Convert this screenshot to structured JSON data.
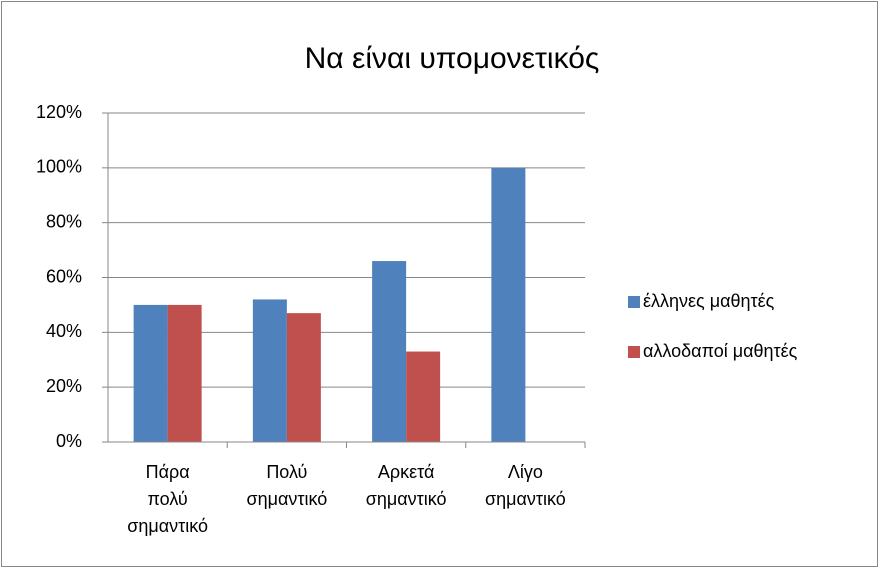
{
  "chart_data": {
    "type": "bar",
    "title": "Να είναι υπομονετικός",
    "categories": [
      "Πάρα πολύ σημαντικό",
      "Πολύ σημαντικό",
      "Αρκετά σημαντικό",
      "Λίγο σημαντικό"
    ],
    "series": [
      {
        "name": "έλληνες μαθητές",
        "color": "#4f81bd",
        "values": [
          50,
          52,
          66,
          100
        ]
      },
      {
        "name": "αλλοδαποί μαθητές",
        "color": "#c0504d",
        "values": [
          50,
          47,
          33,
          0
        ]
      }
    ],
    "ylim": [
      0,
      120
    ],
    "yticks": [
      {
        "value": 0,
        "label": "0%"
      },
      {
        "value": 20,
        "label": "20%"
      },
      {
        "value": 40,
        "label": "40%"
      },
      {
        "value": 60,
        "label": "60%"
      },
      {
        "value": 80,
        "label": "80%"
      },
      {
        "value": 100,
        "label": "100%"
      },
      {
        "value": 120,
        "label": "120%"
      }
    ],
    "grid": true,
    "legend": "right"
  }
}
